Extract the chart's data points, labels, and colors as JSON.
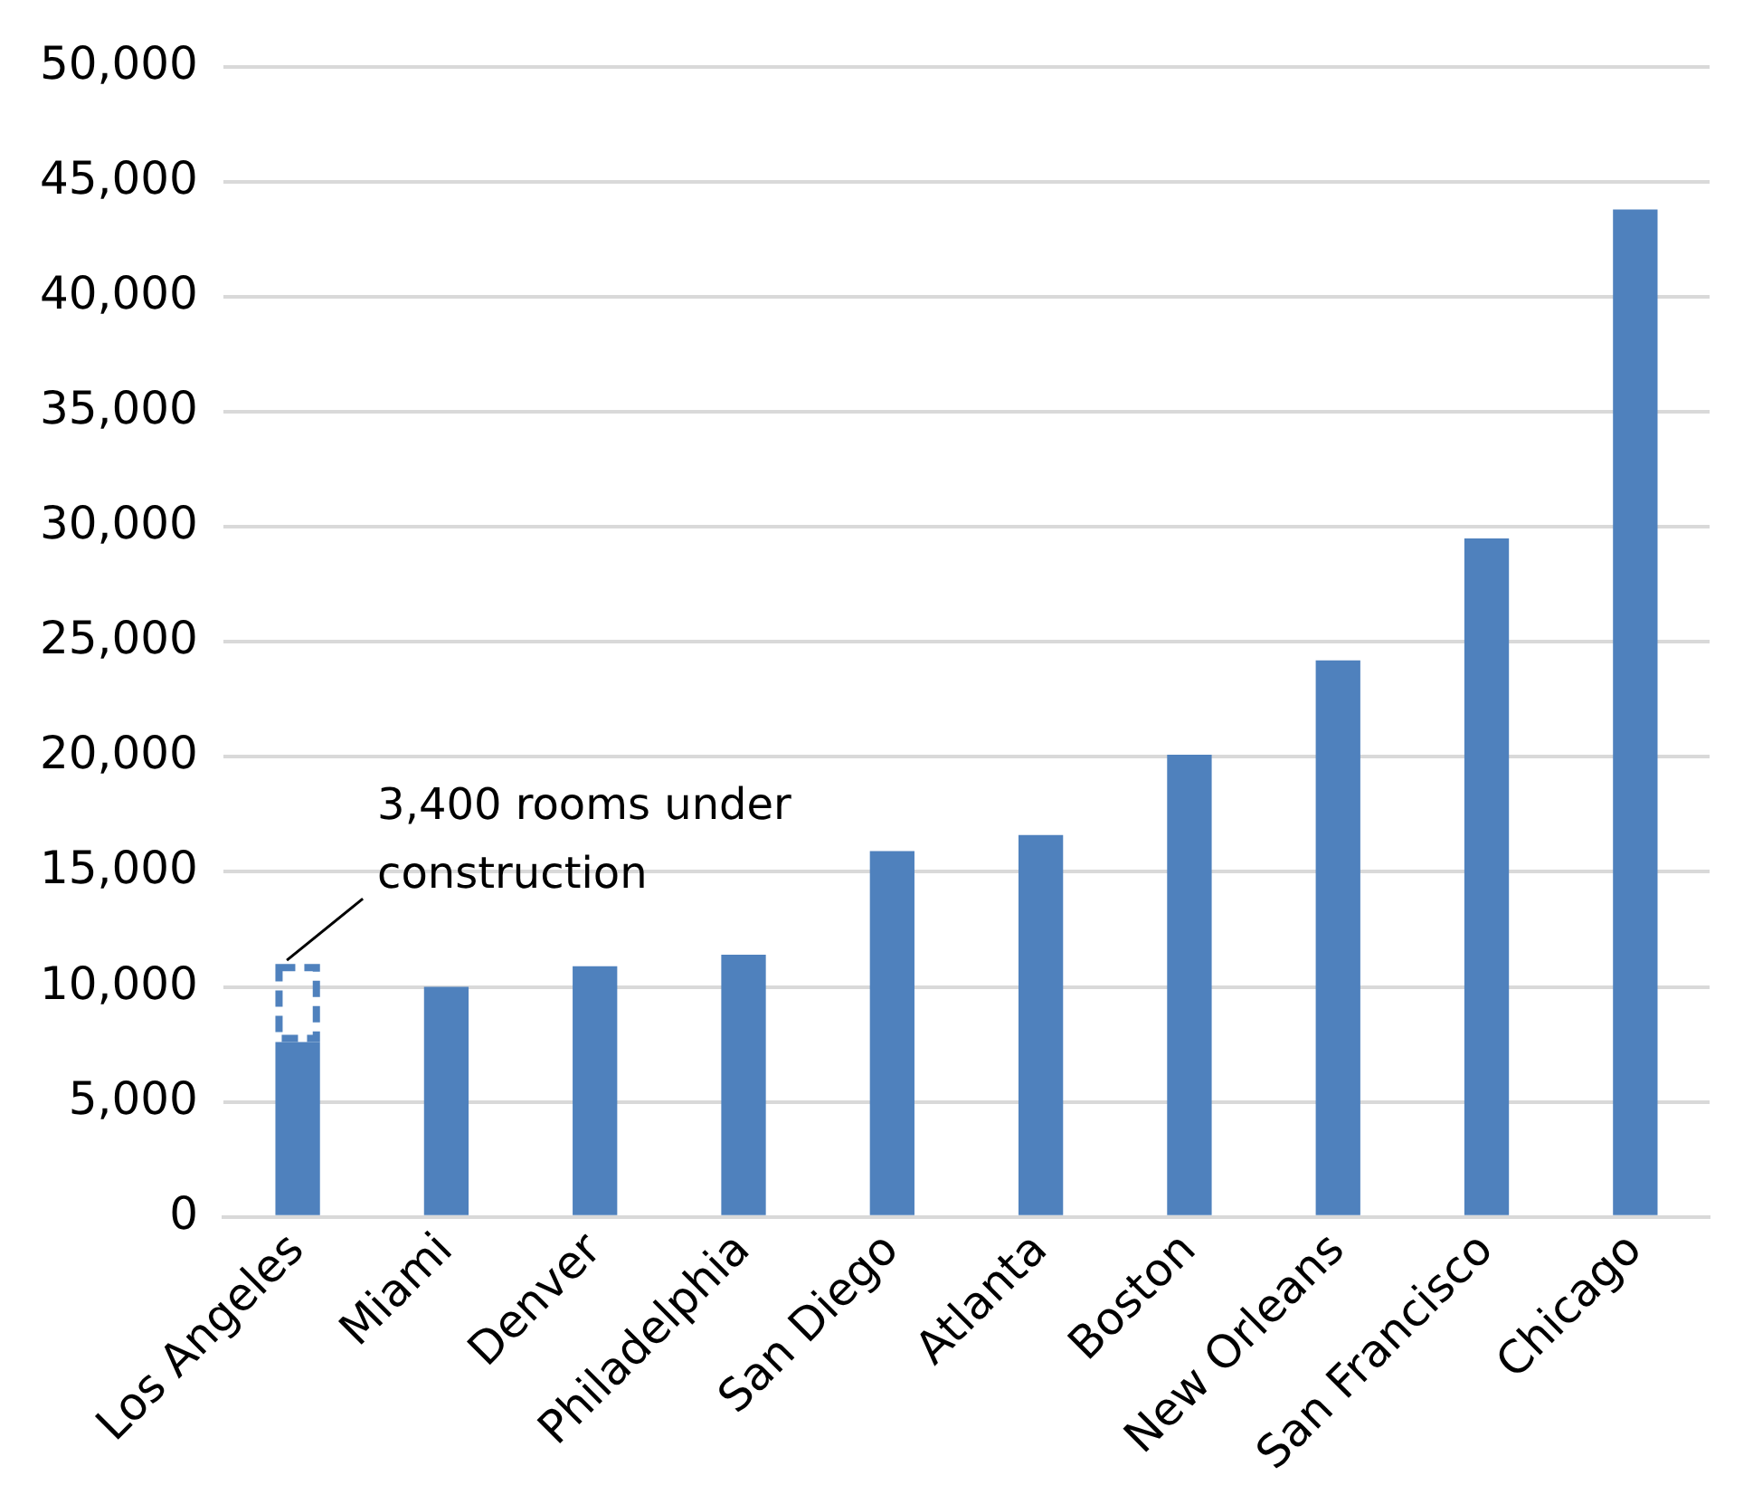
{
  "chart_data": {
    "type": "bar",
    "categories": [
      "Los Angeles",
      "Miami",
      "Denver",
      "Philadelphia",
      "San Diego",
      "Atlanta",
      "Boston",
      "New Orleans",
      "San Francisco",
      "Chicago"
    ],
    "series": [
      {
        "color": "#4f81bd",
        "values": [
          7600,
          10000,
          10900,
          11400,
          15900,
          16600,
          20100,
          24200,
          29500,
          43800
        ]
      },
      {
        "color": "#4f81bd",
        "line_style": "dashed",
        "values": [
          3400,
          null,
          null,
          null,
          null,
          null,
          null,
          null,
          null,
          null
        ]
      }
    ],
    "stacked": true,
    "ylim": [
      0,
      50000
    ],
    "yticks": [
      {
        "value": 0,
        "label": "0"
      },
      {
        "value": 5000,
        "label": "5,000"
      },
      {
        "value": 10000,
        "label": "10,000"
      },
      {
        "value": 15000,
        "label": "15,000"
      },
      {
        "value": 20000,
        "label": "20,000"
      },
      {
        "value": 25000,
        "label": "25,000"
      },
      {
        "value": 30000,
        "label": "30,000"
      },
      {
        "value": 35000,
        "label": "35,000"
      },
      {
        "value": 40000,
        "label": "40,000"
      },
      {
        "value": 45000,
        "label": "45,000"
      },
      {
        "value": 50000,
        "label": "50,000"
      }
    ],
    "grid": "y",
    "annotations": [
      {
        "text": "3,400 rooms under construction",
        "x": "Los Angeles",
        "y": 11000
      }
    ]
  }
}
